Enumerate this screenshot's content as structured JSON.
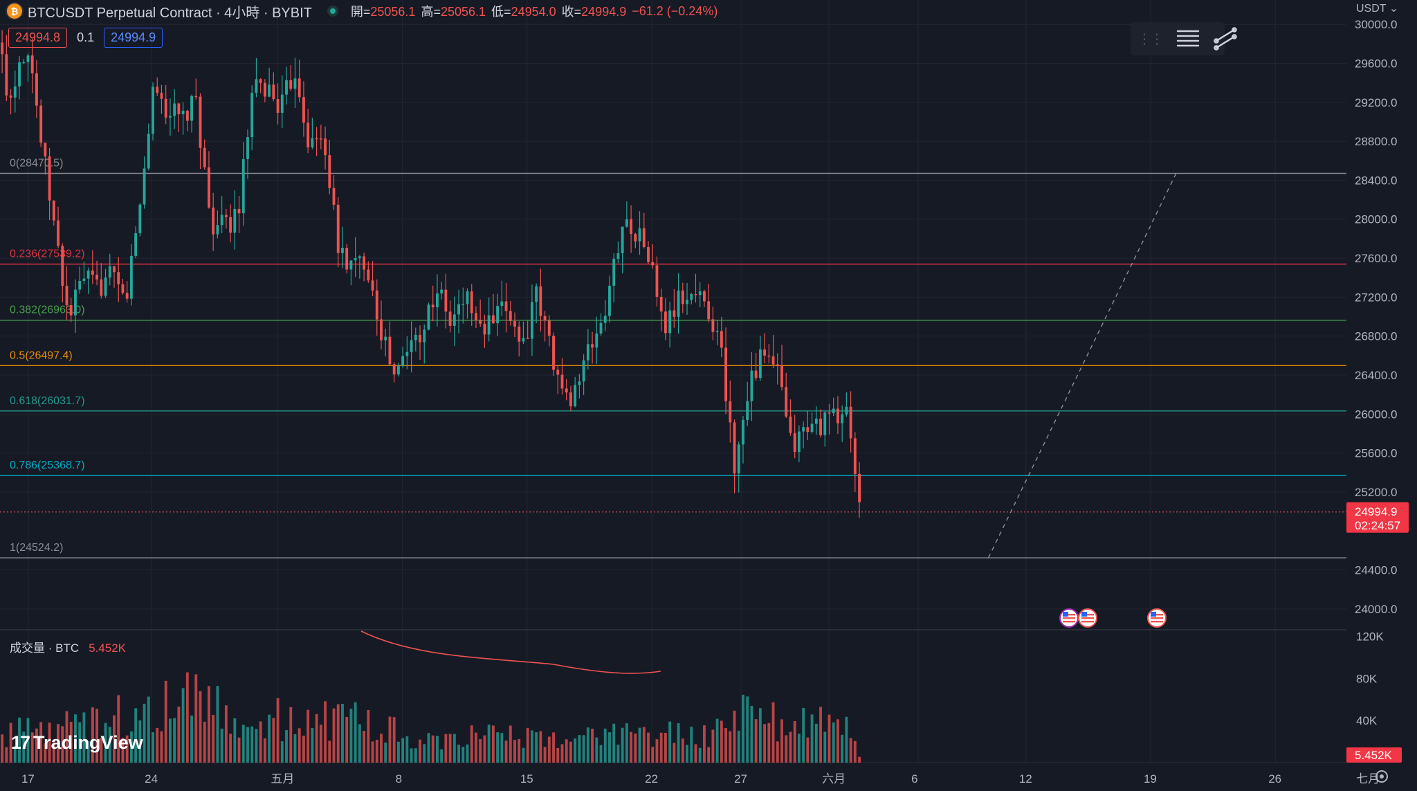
{
  "header": {
    "symbol": "BTCUSDT Perpetual Contract · 4小時 · BYBIT",
    "coin_icon": "bitcoin-icon",
    "open_label": "開=",
    "open": "25056.1",
    "high_label": "高=",
    "high": "25056.1",
    "low_label": "低=",
    "low": "24954.0",
    "close_label": "收=",
    "close": "24994.9",
    "change": "−61.2 (−0.24%)",
    "sell_price": "24994.8",
    "spread": "0.1",
    "buy_price": "24994.9",
    "currency": "USDT"
  },
  "toolbar": {
    "icons": [
      "drag-handle-icon",
      "list-icon",
      "trend-lines-icon"
    ]
  },
  "volume_legend": {
    "label": "成交量 · BTC",
    "value": "5.452K"
  },
  "brand": {
    "name": "TradingView"
  },
  "colors": {
    "up": "#26a69a",
    "down": "#ef5350",
    "background": "#161a25",
    "grid": "#232632"
  },
  "chart_data": {
    "type": "candlestick",
    "price_axis": {
      "range": [
        23800,
        30250
      ],
      "ticks": [
        "30000.0",
        "29600.0",
        "29200.0",
        "28800.0",
        "28400.0",
        "28000.0",
        "27600.0",
        "27200.0",
        "26800.0",
        "26400.0",
        "26000.0",
        "25600.0",
        "25200.0",
        "24400.0",
        "24000.0"
      ]
    },
    "volume_axis": {
      "range": [
        0,
        125000
      ],
      "ticks": [
        "120K",
        "80K",
        "40K"
      ]
    },
    "x_axis": {
      "ticks": [
        "17",
        "24",
        "五月",
        "8",
        "15",
        "22",
        "27",
        "六月",
        "6",
        "12",
        "19",
        "26",
        "七月"
      ]
    },
    "last_price": {
      "value": 24994.9,
      "label": "24994.9",
      "countdown": "02:24:57"
    },
    "last_volume": {
      "label": "5.452K"
    },
    "fibonacci": [
      {
        "label": "0(28470.5)",
        "value": 28470.5,
        "color": "#9598a1"
      },
      {
        "label": "0.236(27539.2)",
        "value": 27539.2,
        "color": "#f23645"
      },
      {
        "label": "0.382(26963.0)",
        "value": 26963.0,
        "color": "#4caf50"
      },
      {
        "label": "0.5(26497.4)",
        "value": 26497.4,
        "color": "#ff9800"
      },
      {
        "label": "0.618(26031.7)",
        "value": 26031.7,
        "color": "#26a69a"
      },
      {
        "label": "0.786(25368.7)",
        "value": 25368.7,
        "color": "#00bcd4"
      },
      {
        "label": "1(24524.2)",
        "value": 24524.2,
        "color": "#9598a1"
      }
    ],
    "dashed_trendline": {
      "from": [
        0.1395,
        24524.2
      ],
      "to": [
        0.166,
        28470.5
      ]
    },
    "event_markers": [
      "us-flag-icon",
      "us-flag-icon",
      "us-flag-icon"
    ],
    "close_path": [
      [
        0.0,
        29900
      ],
      [
        0.008,
        29200
      ],
      [
        0.015,
        29650
      ],
      [
        0.022,
        29800
      ],
      [
        0.03,
        28850
      ],
      [
        0.04,
        27900
      ],
      [
        0.05,
        26980
      ],
      [
        0.06,
        27400
      ],
      [
        0.07,
        27300
      ],
      [
        0.08,
        27400
      ],
      [
        0.09,
        27150
      ],
      [
        0.1,
        28100
      ],
      [
        0.11,
        29400
      ],
      [
        0.118,
        29150
      ],
      [
        0.13,
        29000
      ],
      [
        0.14,
        29200
      ],
      [
        0.15,
        27980
      ],
      [
        0.16,
        27900
      ],
      [
        0.17,
        28100
      ],
      [
        0.18,
        29300
      ],
      [
        0.19,
        29350
      ],
      [
        0.2,
        29150
      ],
      [
        0.21,
        29550
      ],
      [
        0.22,
        28750
      ],
      [
        0.23,
        28850
      ],
      [
        0.24,
        27700
      ],
      [
        0.25,
        27500
      ],
      [
        0.26,
        27600
      ],
      [
        0.27,
        26900
      ],
      [
        0.28,
        26350
      ],
      [
        0.29,
        26700
      ],
      [
        0.3,
        26900
      ],
      [
        0.31,
        27300
      ],
      [
        0.32,
        26900
      ],
      [
        0.33,
        27250
      ],
      [
        0.34,
        26850
      ],
      [
        0.35,
        26950
      ],
      [
        0.36,
        27100
      ],
      [
        0.37,
        26700
      ],
      [
        0.38,
        27200
      ],
      [
        0.39,
        26700
      ],
      [
        0.4,
        26100
      ],
      [
        0.41,
        26350
      ],
      [
        0.42,
        26750
      ],
      [
        0.43,
        27100
      ],
      [
        0.44,
        27950
      ],
      [
        0.45,
        27900
      ],
      [
        0.46,
        27600
      ],
      [
        0.47,
        26850
      ],
      [
        0.48,
        27150
      ],
      [
        0.49,
        27250
      ],
      [
        0.5,
        27150
      ],
      [
        0.51,
        26700
      ],
      [
        0.52,
        25450
      ],
      [
        0.53,
        26350
      ],
      [
        0.54,
        26600
      ],
      [
        0.55,
        26450
      ],
      [
        0.56,
        25650
      ],
      [
        0.57,
        25850
      ],
      [
        0.58,
        25900
      ],
      [
        0.59,
        25950
      ],
      [
        0.6,
        26050
      ],
      [
        0.605,
        25400
      ],
      [
        0.608,
        24995
      ]
    ],
    "volume_profile": [
      [
        0.0,
        28000
      ],
      [
        0.05,
        42000
      ],
      [
        0.1,
        52000
      ],
      [
        0.13,
        75000
      ],
      [
        0.15,
        58000
      ],
      [
        0.2,
        45000
      ],
      [
        0.25,
        44000
      ],
      [
        0.3,
        25000
      ],
      [
        0.35,
        28000
      ],
      [
        0.4,
        24000
      ],
      [
        0.45,
        30000
      ],
      [
        0.5,
        28000
      ],
      [
        0.53,
        55000
      ],
      [
        0.56,
        40000
      ],
      [
        0.6,
        45000
      ],
      [
        0.608,
        5452
      ]
    ],
    "candle_count": 200,
    "plot_width_fraction": 0.608
  }
}
